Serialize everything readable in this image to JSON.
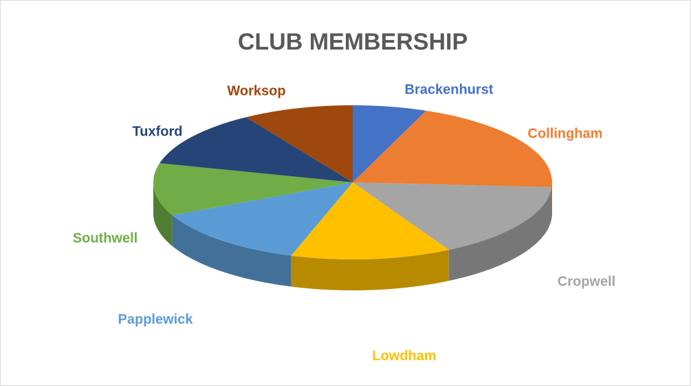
{
  "chart_data": {
    "type": "pie",
    "title": "CLUB MEMBERSHIP",
    "categories": [
      "Brackenhurst",
      "Collingham",
      "Cropwell",
      "Lowdham",
      "Papplewick",
      "Southwell",
      "Tuxford",
      "Worksop"
    ],
    "values": [
      6,
      20,
      16,
      13,
      13,
      11,
      12,
      9
    ],
    "colors": [
      "#4472c4",
      "#ed7d31",
      "#a5a5a5",
      "#ffc000",
      "#5b9bd5",
      "#70ad47",
      "#264478",
      "#9e480e"
    ]
  }
}
